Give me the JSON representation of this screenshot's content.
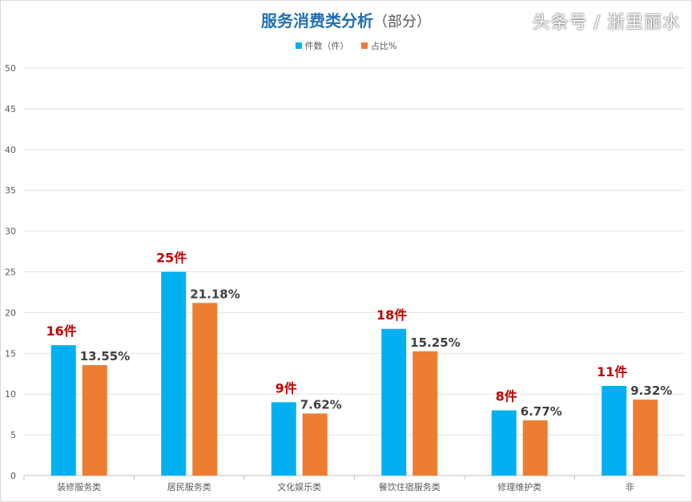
{
  "chart_data": {
    "type": "bar",
    "title": "服务消费类分析",
    "subtitle": "（部分）",
    "categories": [
      "装修服务类",
      "居民服务类",
      "文化娱乐类",
      "餐饮住宿服务类",
      "修理维护类",
      "非"
    ],
    "series": [
      {
        "name": "件数（件）",
        "color": "#00b0f0",
        "values": [
          16,
          25,
          9,
          18,
          8,
          11
        ],
        "labels": [
          "16件",
          "25件",
          "9件",
          "18件",
          "8件",
          "11件"
        ]
      },
      {
        "name": "占比%",
        "color": "#ed7d31",
        "values": [
          13.55,
          21.18,
          7.62,
          15.25,
          6.77,
          9.32
        ],
        "labels": [
          "13.55%",
          "21.18%",
          "7.62%",
          "15.25%",
          "6.77%",
          "9.32%"
        ]
      }
    ],
    "ylim": [
      0,
      50
    ],
    "yticks": [
      0,
      5,
      10,
      15,
      20,
      25,
      30,
      35,
      40,
      45,
      50
    ],
    "grid": true,
    "legend": "top"
  },
  "watermark": "头条号 / 浙里丽水"
}
